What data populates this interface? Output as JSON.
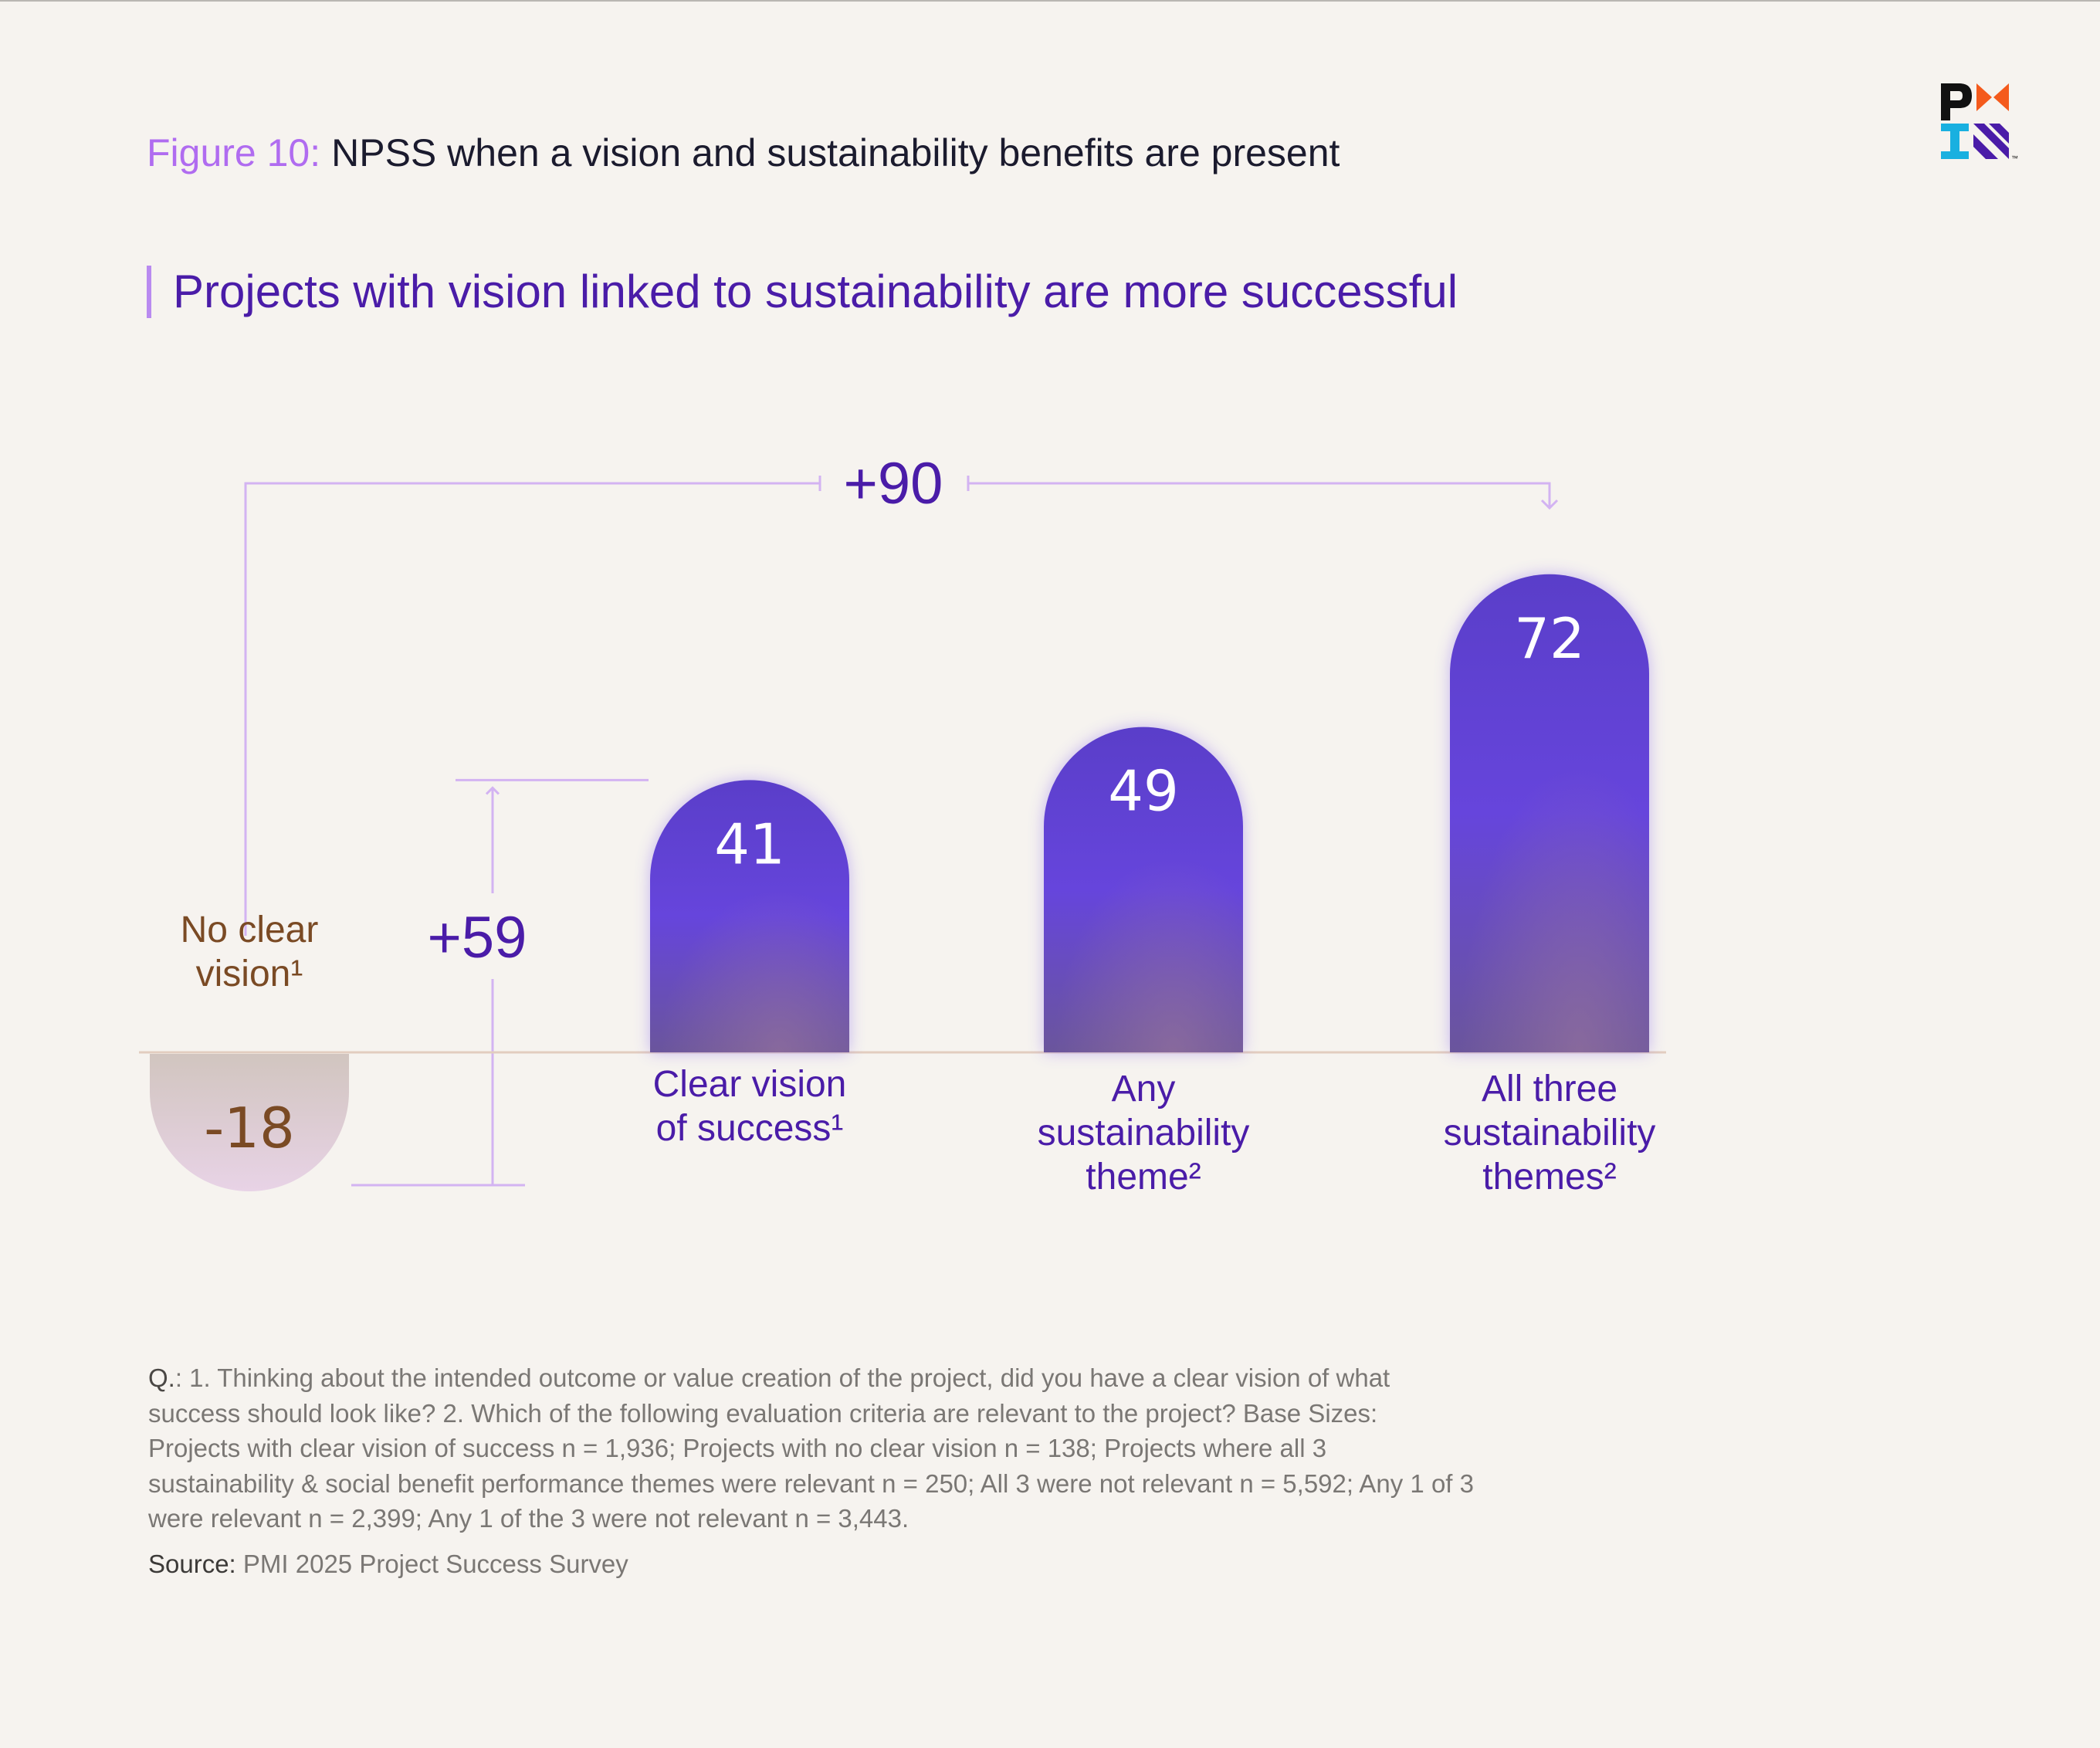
{
  "figure": {
    "label": "Figure 10:",
    "title": "NPSS when a vision and sustainability benefits are present"
  },
  "subtitle": "Projects with vision linked to sustainability are more successful",
  "logo": {
    "icon": "pmi-logo-icon",
    "tm": "™"
  },
  "chart_data": {
    "type": "bar",
    "categories": [
      [
        "No clear",
        "vision¹"
      ],
      [
        "Clear vision",
        "of success¹"
      ],
      [
        "Any",
        "sustainability",
        "theme²"
      ],
      [
        "All three",
        "sustainability",
        "themes²"
      ]
    ],
    "values": [
      -18,
      41,
      49,
      72
    ],
    "data_labels": [
      "-18",
      "41",
      "49",
      "72"
    ],
    "annotations": [
      {
        "text": "+59",
        "from_category": 0,
        "to_category": 1
      },
      {
        "text": "+90",
        "from_category": 0,
        "to_category": 3
      }
    ],
    "colors": {
      "positive_bar_top": "#5a3ec9",
      "positive_bar_mid": "#6645dc",
      "positive_bar_bottom": "#6a559c",
      "negative_bar_top": "#d1c5bf",
      "negative_bar_bottom": "#e8d3e6",
      "positive_label": "#4a1ca8",
      "negative_label": "#7a4a24",
      "bar_value_text": "#ffffff",
      "bracket": "#d3b3f2",
      "baseline": "#e2cdbf"
    },
    "legend": "none",
    "grid": false
  },
  "notes": {
    "q_label": "Q.",
    "q_text": ": 1. Thinking about the intended outcome or value creation of the project, did you have a clear vision of what success should look like? 2. Which of the following evaluation criteria are relevant to the project? Base Sizes: Projects with clear vision of success n = 1,936; Projects with no clear vision n = 138; Projects where all 3 sustainability & social benefit performance themes were relevant n = 250; All 3 were not relevant n = 5,592; Any 1 of 3 were relevant n = 2,399; Any 1 of the 3 were not relevant n = 3,443.",
    "source_label": "Source:",
    "source_text": " PMI 2025 Project Success Survey"
  }
}
